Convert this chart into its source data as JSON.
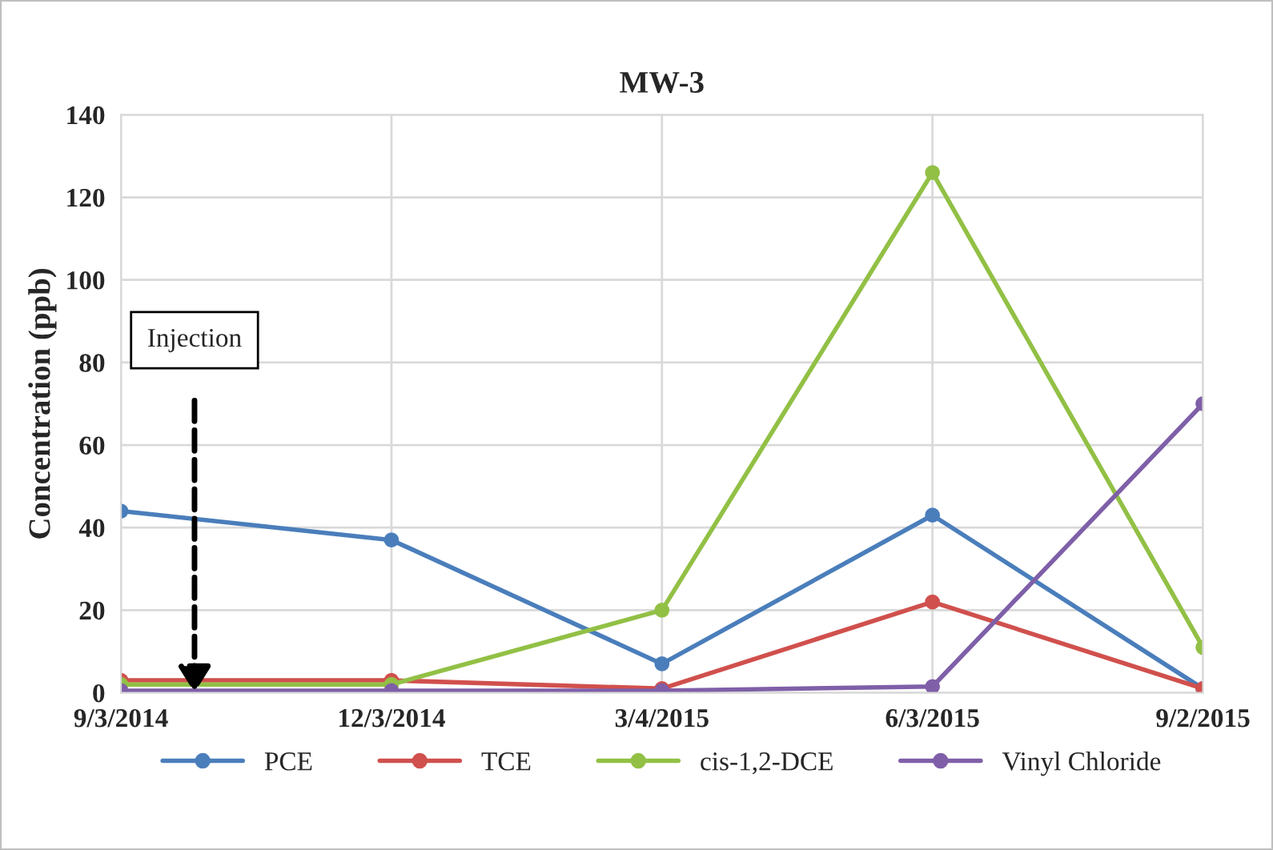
{
  "chart_data": {
    "type": "line",
    "title": "MW-3",
    "ylabel": "Concentration (ppb)",
    "x": [
      "2014-09-03",
      "2014-12-03",
      "2015-03-04",
      "2015-06-03",
      "2015-09-02"
    ],
    "series": [
      {
        "name": "PCE",
        "color": "#4a7ebb",
        "values": [
          44,
          37,
          7,
          43,
          1
        ]
      },
      {
        "name": "TCE",
        "color": "#d0504d",
        "values": [
          3,
          3,
          1,
          22,
          1
        ]
      },
      {
        "name": "cis-1,2-DCE",
        "color": "#92c045",
        "values": [
          2,
          2,
          20,
          126,
          11
        ]
      },
      {
        "name": "Vinyl Chloride",
        "color": "#7f5fa8",
        "values": [
          0.5,
          0.5,
          0.5,
          1.5,
          70
        ]
      }
    ],
    "xlim": [
      "2014-09-03",
      "2015-09-02"
    ],
    "xticks": [
      {
        "value": "2014-09-03",
        "label": "9/3/2014"
      },
      {
        "value": "2014-12-03",
        "label": "12/3/2014"
      },
      {
        "value": "2015-03-04",
        "label": "3/4/2015"
      },
      {
        "value": "2015-06-03",
        "label": "6/3/2015"
      },
      {
        "value": "2015-09-02",
        "label": "9/2/2015"
      }
    ],
    "ylim": [
      0,
      140
    ],
    "yticks": [
      0,
      20,
      40,
      60,
      80,
      100,
      120,
      140
    ],
    "annotations": [
      "Injection"
    ],
    "grid": true,
    "legend": "bottom",
    "marker": "circle",
    "line_style": "solid"
  }
}
